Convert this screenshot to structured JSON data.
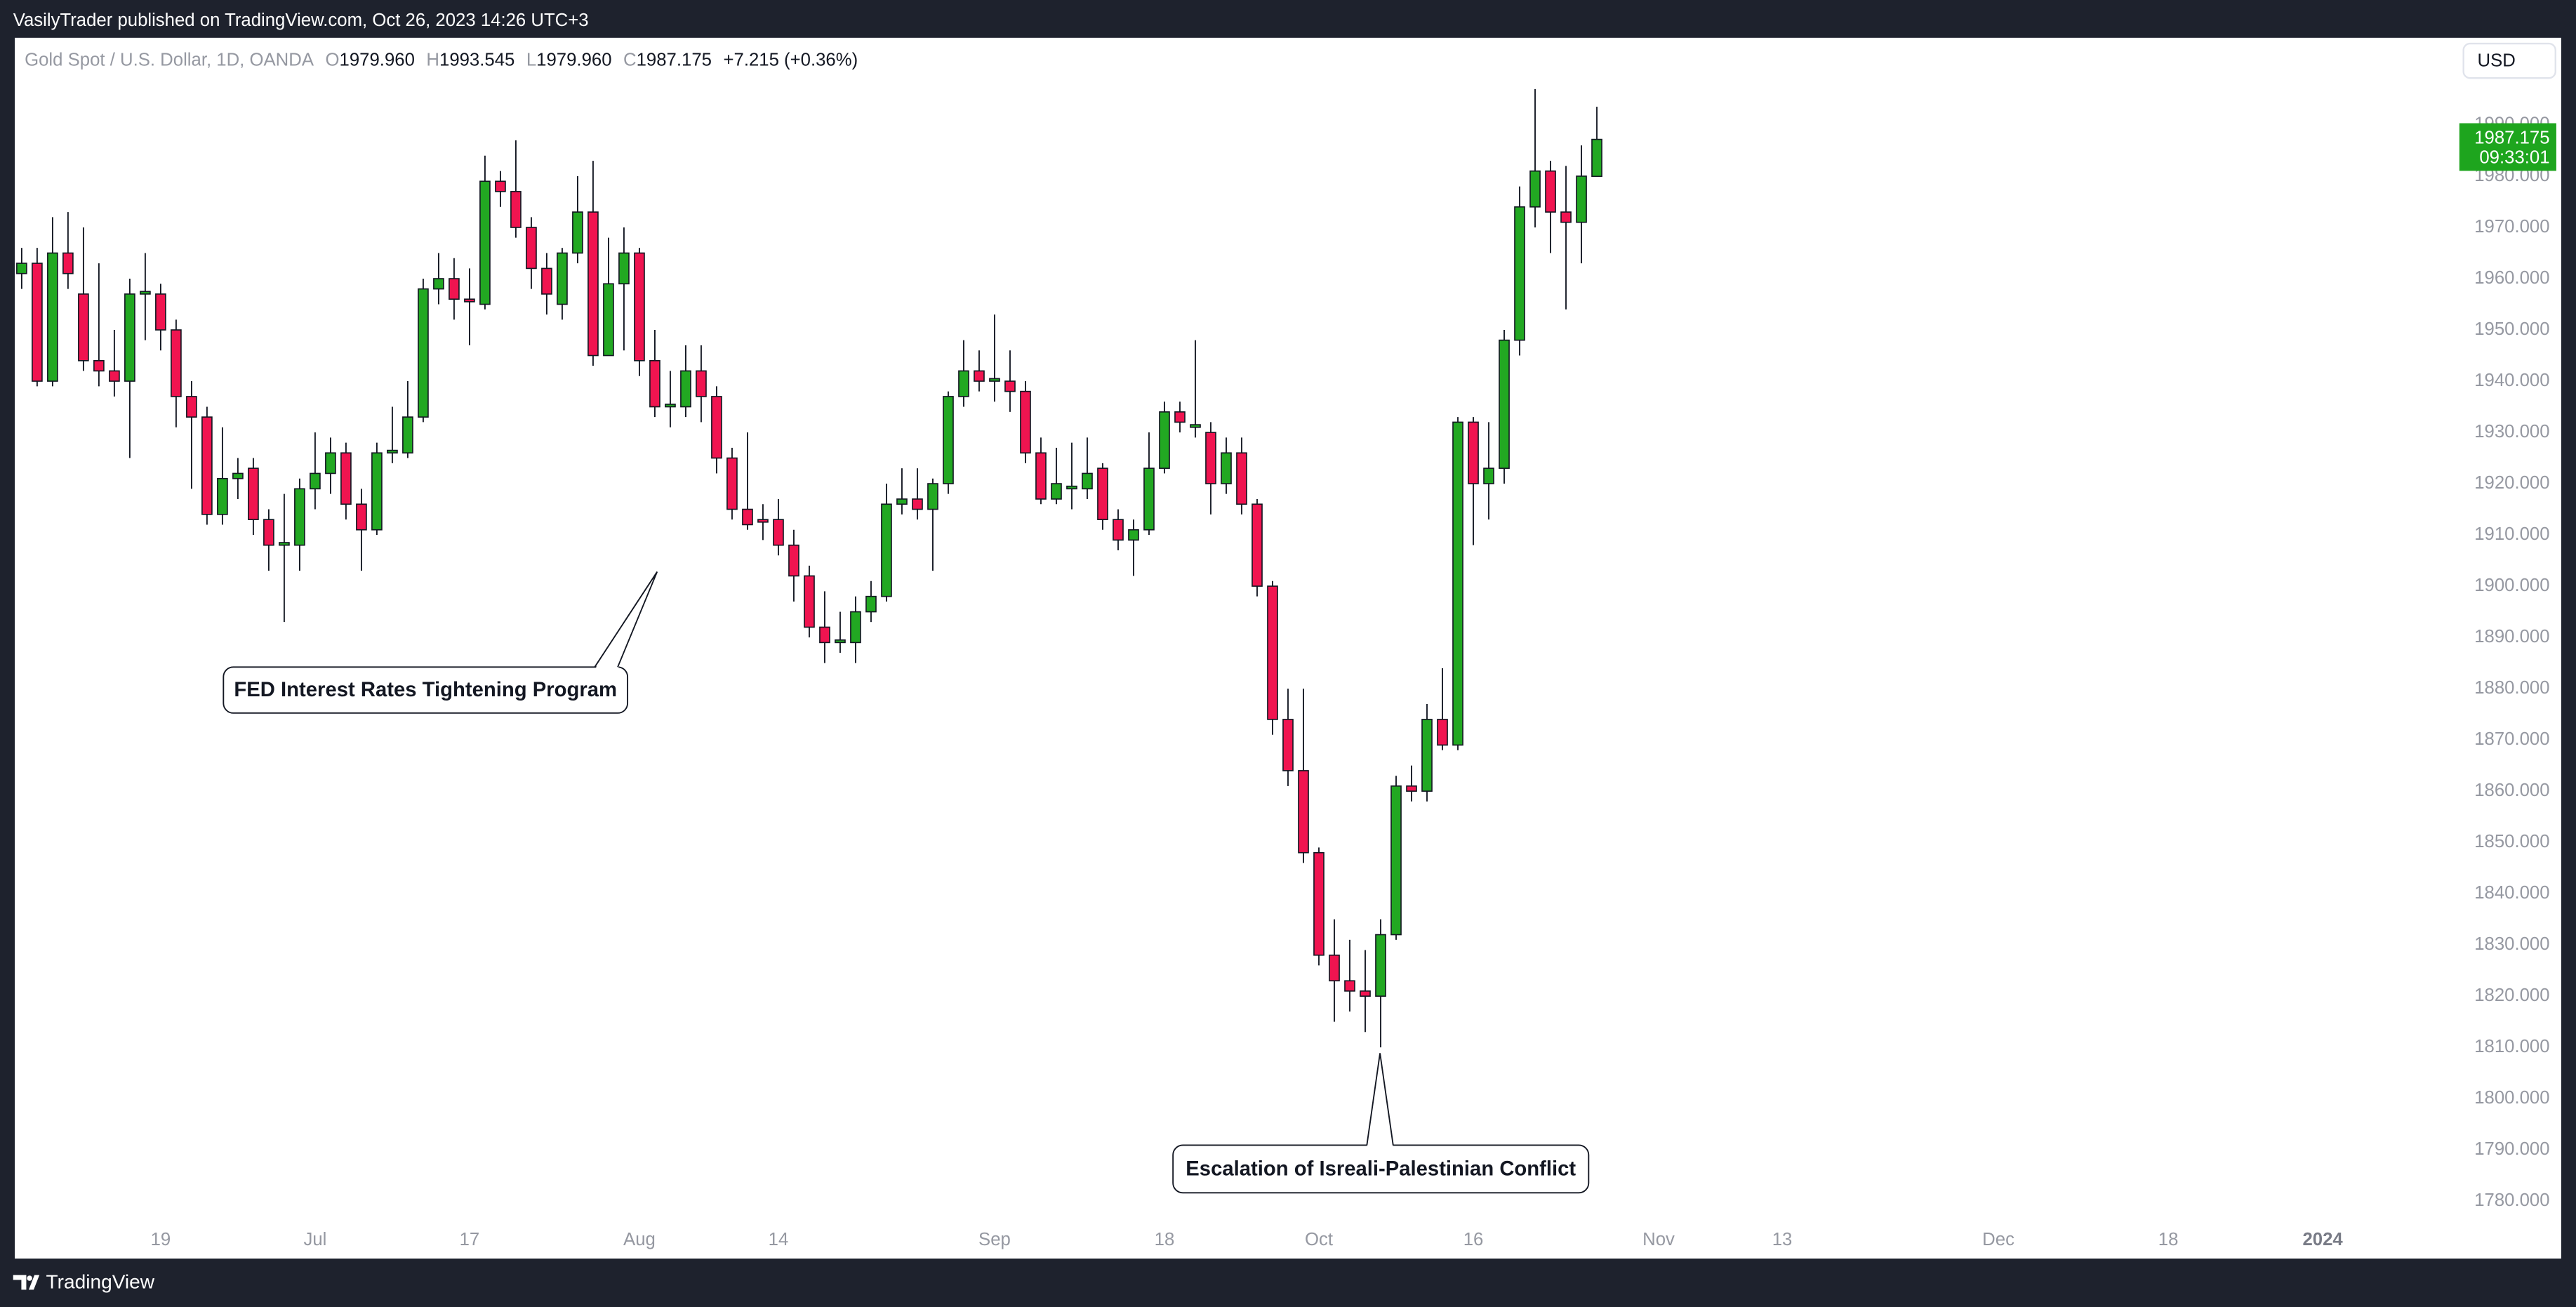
{
  "header": "VasilyTrader published on TradingView.com, Oct 26, 2023 14:26 UTC+3",
  "footer": "TradingView",
  "chart_data": {
    "type": "candlestick",
    "title": "Gold Spot / U.S. Dollar, 1D, OANDA",
    "legend": [
      {
        "label": "O",
        "value": "1979.960"
      },
      {
        "label": "H",
        "value": "1993.545"
      },
      {
        "label": "L",
        "value": "1979.960"
      },
      {
        "label": "C",
        "value": "1987.175"
      }
    ],
    "change": "+7.215 (+0.36%)",
    "currency": "USD",
    "price_tag": {
      "price": "1987.175",
      "countdown": "09:33:01"
    },
    "annotations": [
      "FED Interest Rates Tightening Program",
      "Escalation of Isreali-Palestinian Conflict"
    ],
    "up_color": "#22a822",
    "down_color": "#f01450",
    "x": [
      "2023-06-06",
      "2023-06-07",
      "2023-06-08",
      "2023-06-09",
      "2023-06-12",
      "2023-06-13",
      "2023-06-14",
      "2023-06-15",
      "2023-06-16",
      "2023-06-19",
      "2023-06-20",
      "2023-06-21",
      "2023-06-22",
      "2023-06-23",
      "2023-06-26",
      "2023-06-27",
      "2023-06-28",
      "2023-06-29",
      "2023-06-30",
      "2023-07-03",
      "2023-07-04",
      "2023-07-05",
      "2023-07-06",
      "2023-07-07",
      "2023-07-10",
      "2023-07-11",
      "2023-07-12",
      "2023-07-13",
      "2023-07-14",
      "2023-07-17",
      "2023-07-18",
      "2023-07-19",
      "2023-07-20",
      "2023-07-21",
      "2023-07-24",
      "2023-07-25",
      "2023-07-26",
      "2023-07-27",
      "2023-07-28",
      "2023-07-31",
      "2023-08-01",
      "2023-08-02",
      "2023-08-03",
      "2023-08-04",
      "2023-08-07",
      "2023-08-08",
      "2023-08-09",
      "2023-08-10",
      "2023-08-11",
      "2023-08-14",
      "2023-08-15",
      "2023-08-16",
      "2023-08-17",
      "2023-08-18",
      "2023-08-21",
      "2023-08-22",
      "2023-08-23",
      "2023-08-24",
      "2023-08-25",
      "2023-08-28",
      "2023-08-29",
      "2023-08-30",
      "2023-08-31",
      "2023-09-01",
      "2023-09-04",
      "2023-09-05",
      "2023-09-06",
      "2023-09-07",
      "2023-09-08",
      "2023-09-11",
      "2023-09-12",
      "2023-09-13",
      "2023-09-14",
      "2023-09-15",
      "2023-09-18",
      "2023-09-19",
      "2023-09-20",
      "2023-09-21",
      "2023-09-22",
      "2023-09-25",
      "2023-09-26",
      "2023-09-27",
      "2023-09-28",
      "2023-09-29",
      "2023-10-02",
      "2023-10-03",
      "2023-10-04",
      "2023-10-05",
      "2023-10-06",
      "2023-10-09",
      "2023-10-10",
      "2023-10-11",
      "2023-10-12",
      "2023-10-13",
      "2023-10-16",
      "2023-10-17",
      "2023-10-18",
      "2023-10-19",
      "2023-10-20",
      "2023-10-23",
      "2023-10-24",
      "2023-10-25",
      "2023-10-26"
    ],
    "open": [
      1961,
      1963,
      1940,
      1965,
      1957,
      1944,
      1942,
      1940,
      1957,
      1957,
      1950,
      1937,
      1933,
      1914,
      1921,
      1923,
      1913,
      1908,
      1908,
      1919,
      1922,
      1926,
      1916,
      1911,
      1926,
      1926,
      1933,
      1958,
      1960,
      1956,
      1955,
      1979,
      1977,
      1970,
      1962,
      1955,
      1965,
      1973,
      1945,
      1959,
      1965,
      1944,
      1935,
      1935,
      1942,
      1937,
      1925,
      1915,
      1913,
      1913,
      1908,
      1902,
      1892,
      1889,
      1889,
      1895,
      1898,
      1916,
      1917,
      1915,
      1920,
      1937,
      1942,
      1940,
      1940,
      1938,
      1926,
      1917,
      1919,
      1919,
      1923,
      1913,
      1909,
      1911,
      1923,
      1934,
      1931,
      1930,
      1920,
      1926,
      1916,
      1900,
      1874,
      1864,
      1848,
      1828,
      1823,
      1821,
      1820,
      1832,
      1861,
      1860,
      1874,
      1869,
      1932,
      1920,
      1923,
      1948,
      1974,
      1981,
      1973,
      1971,
      1979.96
    ],
    "high": [
      1966,
      1966,
      1972,
      1973,
      1970,
      1963,
      1950,
      1960,
      1965,
      1959,
      1952,
      1940,
      1935,
      1931,
      1925,
      1925,
      1915,
      1918,
      1921,
      1930,
      1929,
      1928,
      1919,
      1928,
      1935,
      1940,
      1960,
      1965,
      1964,
      1962,
      1984,
      1981,
      1987,
      1972,
      1965,
      1966,
      1980,
      1983,
      1968,
      1970,
      1966,
      1950,
      1942,
      1947,
      1947,
      1939,
      1927,
      1930,
      1916,
      1917,
      1911,
      1904,
      1899,
      1895,
      1898,
      1901,
      1920,
      1923,
      1923,
      1921,
      1938,
      1948,
      1946,
      1953,
      1946,
      1940,
      1929,
      1927,
      1928,
      1929,
      1924,
      1915,
      1913,
      1930,
      1936,
      1936,
      1948,
      1932,
      1929,
      1929,
      1917,
      1901,
      1880,
      1880,
      1849,
      1835,
      1831,
      1829,
      1835,
      1863,
      1865,
      1877,
      1884,
      1933,
      1933,
      1932,
      1950,
      1978,
      1997,
      1983,
      1982,
      1986,
      1993.545
    ],
    "low": [
      1958,
      1939,
      1939,
      1958,
      1942,
      1939,
      1937,
      1925,
      1948,
      1946,
      1931,
      1919,
      1912,
      1912,
      1917,
      1910,
      1903,
      1893,
      1903,
      1915,
      1918,
      1913,
      1903,
      1910,
      1924,
      1925,
      1932,
      1955,
      1952,
      1947,
      1954,
      1974,
      1968,
      1958,
      1953,
      1952,
      1963,
      1943,
      1945,
      1946,
      1941,
      1933,
      1931,
      1933,
      1932,
      1922,
      1913,
      1911,
      1909,
      1906,
      1897,
      1890,
      1885,
      1887,
      1885,
      1893,
      1897,
      1914,
      1913,
      1903,
      1918,
      1935,
      1938,
      1936,
      1934,
      1924,
      1916,
      1916,
      1915,
      1917,
      1911,
      1907,
      1902,
      1910,
      1922,
      1930,
      1929,
      1914,
      1918,
      1914,
      1898,
      1871,
      1861,
      1846,
      1826,
      1815,
      1817,
      1813,
      1810,
      1831,
      1858,
      1858,
      1868,
      1868,
      1908,
      1913,
      1920,
      1945,
      1970,
      1965,
      1954,
      1963,
      1979.96
    ],
    "close": [
      1963,
      1940,
      1965,
      1961,
      1944,
      1942,
      1940,
      1957,
      1957.5,
      1950,
      1937,
      1933,
      1914,
      1921,
      1922,
      1913,
      1908,
      1908.5,
      1919,
      1922,
      1926,
      1916,
      1911,
      1926,
      1926.5,
      1933,
      1958,
      1960,
      1956,
      1955.5,
      1979,
      1977,
      1970,
      1962,
      1957,
      1965,
      1973,
      1945,
      1959,
      1965,
      1944,
      1935,
      1935.5,
      1942,
      1937,
      1925,
      1915,
      1912,
      1912.5,
      1908,
      1902,
      1892,
      1889,
      1889.5,
      1895,
      1898,
      1916,
      1917,
      1915,
      1920,
      1937,
      1942,
      1940,
      1940.5,
      1938,
      1926,
      1917,
      1920,
      1919.5,
      1922,
      1913,
      1909,
      1911,
      1923,
      1934,
      1932,
      1931.5,
      1920,
      1926,
      1916,
      1900,
      1874,
      1864,
      1848,
      1828,
      1823,
      1821,
      1820,
      1832,
      1861,
      1860,
      1874,
      1869,
      1932,
      1920,
      1923,
      1948,
      1974,
      1981,
      1973,
      1971,
      1980,
      1987.175
    ],
    "ylim": [
      1776.5,
      2007
    ],
    "yticks": [
      {
        "value": 1780,
        "label": "1780.000"
      },
      {
        "value": 1790,
        "label": "1790.000"
      },
      {
        "value": 1800,
        "label": "1800.000"
      },
      {
        "value": 1810,
        "label": "1810.000"
      },
      {
        "value": 1820,
        "label": "1820.000"
      },
      {
        "value": 1830,
        "label": "1830.000"
      },
      {
        "value": 1840,
        "label": "1840.000"
      },
      {
        "value": 1850,
        "label": "1850.000"
      },
      {
        "value": 1860,
        "label": "1860.000"
      },
      {
        "value": 1870,
        "label": "1870.000"
      },
      {
        "value": 1880,
        "label": "1880.000"
      },
      {
        "value": 1890,
        "label": "1890.000"
      },
      {
        "value": 1900,
        "label": "1900.000"
      },
      {
        "value": 1910,
        "label": "1910.000"
      },
      {
        "value": 1920,
        "label": "1920.000"
      },
      {
        "value": 1930,
        "label": "1930.000"
      },
      {
        "value": 1940,
        "label": "1940.000"
      },
      {
        "value": 1950,
        "label": "1950.000"
      },
      {
        "value": 1960,
        "label": "1960.000"
      },
      {
        "value": 1970,
        "label": "1970.000"
      },
      {
        "value": 1980,
        "label": "1980.000"
      },
      {
        "value": 1990,
        "label": "1990.000"
      }
    ],
    "xticks": [
      {
        "value": "2023-06-19",
        "label": "19"
      },
      {
        "value": "2023-07-03",
        "label": "Jul"
      },
      {
        "value": "2023-07-17",
        "label": "17"
      },
      {
        "value": "2023-08-01",
        "label": "Aug"
      },
      {
        "value": "2023-08-14",
        "label": "14"
      },
      {
        "value": "2023-09-01",
        "label": "Sep"
      },
      {
        "value": "2023-09-18",
        "label": "18"
      },
      {
        "value": "2023-10-02",
        "label": "Oct"
      },
      {
        "value": "2023-10-16",
        "label": "16"
      },
      {
        "value": "2023-11-01",
        "label": "Nov"
      },
      {
        "value": "2023-11-13",
        "label": "13"
      },
      {
        "value": "2023-12-01",
        "label": "Dec"
      },
      {
        "value": "2023-12-18",
        "label": "18"
      },
      {
        "value": "2024-01-01",
        "label": "2024"
      }
    ]
  }
}
